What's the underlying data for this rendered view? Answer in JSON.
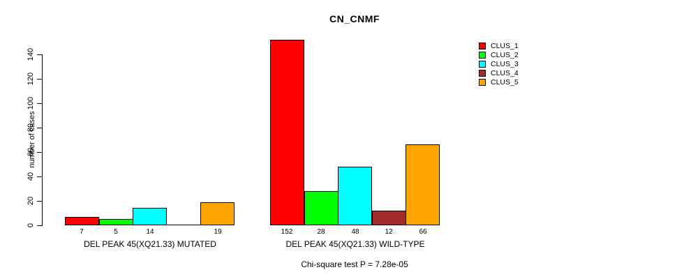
{
  "chart_data": {
    "type": "bar",
    "title": "CN_CNMF",
    "ylabel": "number of cases",
    "ylim": [
      0,
      140
    ],
    "yticks": [
      0,
      20,
      40,
      60,
      80,
      100,
      120,
      140
    ],
    "grid": false,
    "legend_position": "top-right",
    "legend": [
      {
        "name": "CLUS_1",
        "color": "#FF0000"
      },
      {
        "name": "CLUS_2",
        "color": "#00FF00"
      },
      {
        "name": "CLUS_3",
        "color": "#00FFFF"
      },
      {
        "name": "CLUS_4",
        "color": "#A52A2A"
      },
      {
        "name": "CLUS_5",
        "color": "#FFA500"
      }
    ],
    "groups": [
      {
        "label": "DEL PEAK 45(XQ21.33) MUTATED",
        "values": [
          7,
          5,
          14,
          0,
          19
        ],
        "value_labels": [
          "7",
          "5",
          "14",
          "",
          "19"
        ]
      },
      {
        "label": "DEL PEAK 45(XQ21.33) WILD-TYPE",
        "values": [
          152,
          28,
          48,
          12,
          66
        ],
        "value_labels": [
          "152",
          "28",
          "48",
          "12",
          "66"
        ]
      }
    ],
    "annotation": "Chi-square test P = 7.28e-05"
  }
}
